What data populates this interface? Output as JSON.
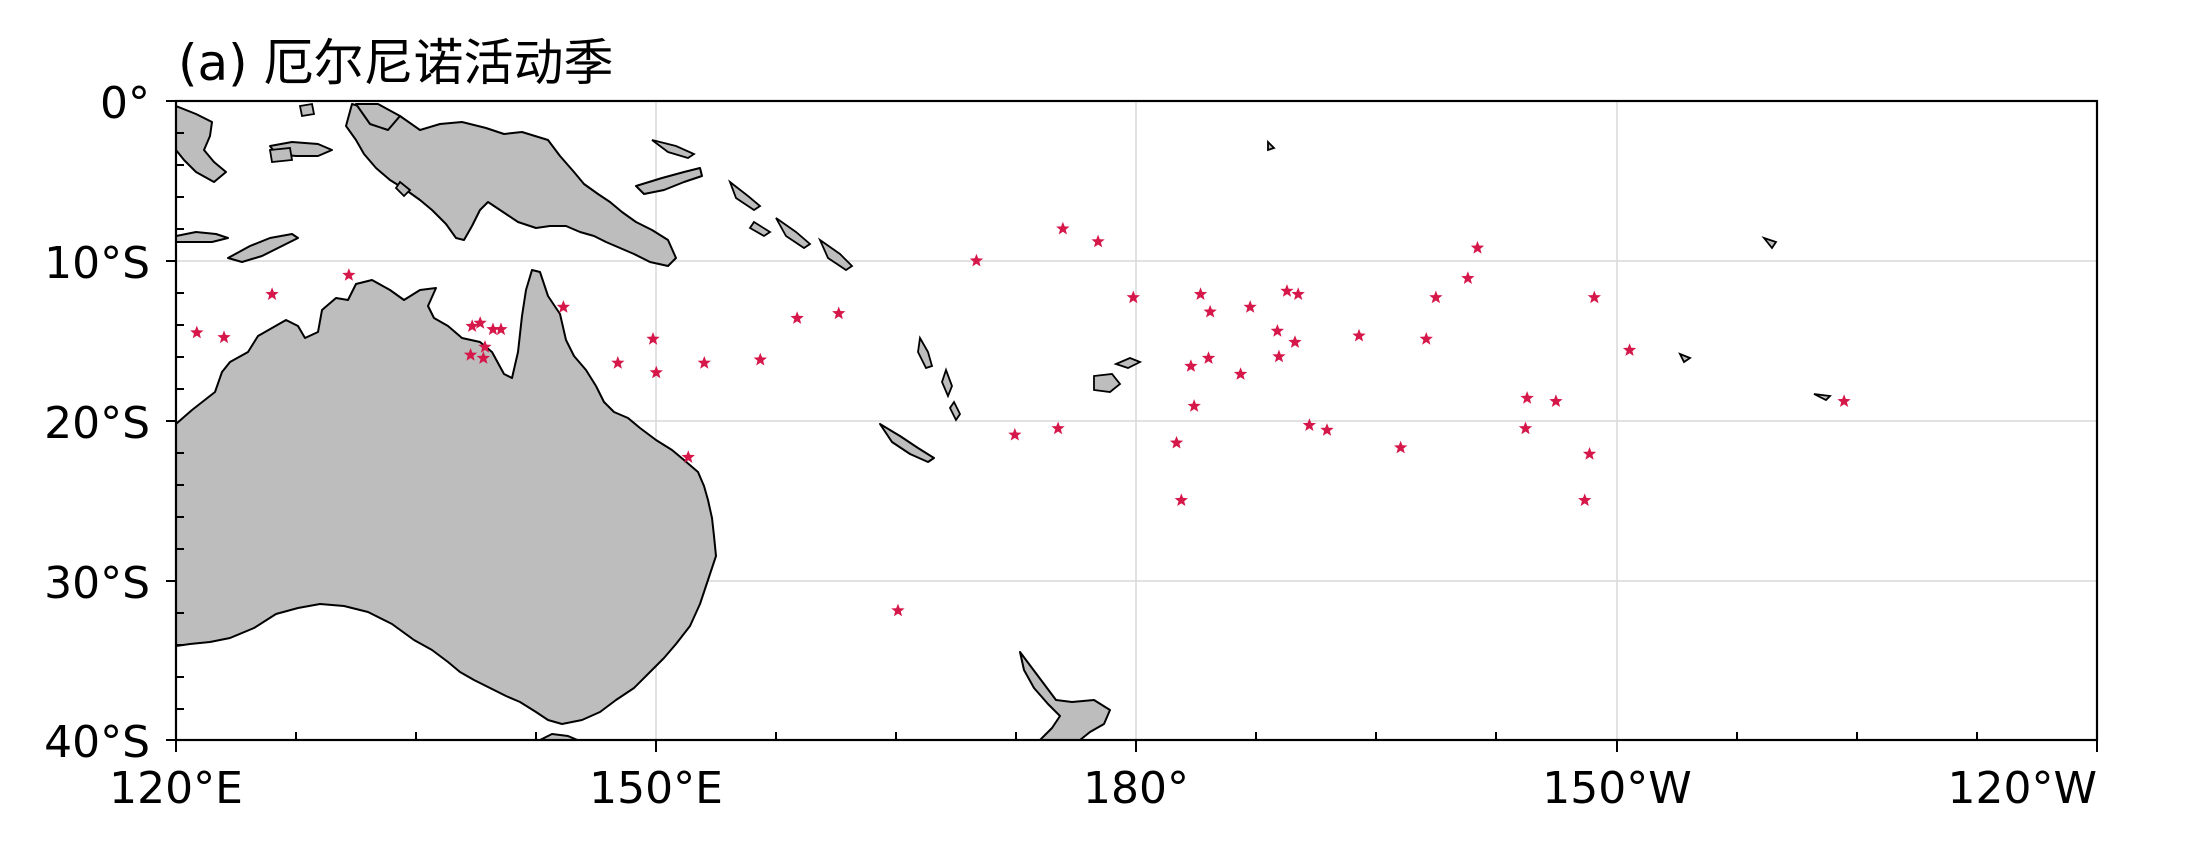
{
  "title": "(a) 厄尔尼诺活动季",
  "map": {
    "lon_range": [
      120,
      240
    ],
    "lat_range": [
      0,
      -40
    ],
    "x_ticks": [
      {
        "lon": 120,
        "label": "120°E"
      },
      {
        "lon": 150,
        "label": "150°E"
      },
      {
        "lon": 180,
        "label": "180°"
      },
      {
        "lon": 210,
        "label": "150°W"
      },
      {
        "lon": 240,
        "label": "120°W"
      }
    ],
    "y_ticks": [
      {
        "lat": 0,
        "label": "0°"
      },
      {
        "lat": -10,
        "label": "10°S"
      },
      {
        "lat": -20,
        "label": "20°S"
      },
      {
        "lat": -30,
        "label": "30°S"
      },
      {
        "lat": -40,
        "label": "40°S"
      }
    ],
    "land_color": "#bdbdbd",
    "marker_color": "#d6174a",
    "gridlines": true
  },
  "points": [
    [
      121.3,
      -14.5
    ],
    [
      123,
      -14.8
    ],
    [
      126,
      -12.1
    ],
    [
      130.8,
      -10.9
    ],
    [
      138.5,
      -14.1
    ],
    [
      139,
      -13.9
    ],
    [
      139.8,
      -14.3
    ],
    [
      140.3,
      -14.3
    ],
    [
      138.4,
      -15.9
    ],
    [
      139.2,
      -16.1
    ],
    [
      139.3,
      -15.4
    ],
    [
      144.2,
      -12.9
    ],
    [
      147.6,
      -16.4
    ],
    [
      149.8,
      -14.9
    ],
    [
      150,
      -17
    ],
    [
      153,
      -16.4
    ],
    [
      152,
      -22.3
    ],
    [
      156.5,
      -16.2
    ],
    [
      158.8,
      -13.6
    ],
    [
      161.4,
      -13.3
    ],
    [
      165.1,
      -31.9
    ],
    [
      170,
      -10
    ],
    [
      172.4,
      -20.9
    ],
    [
      175.1,
      -20.5
    ],
    [
      175.4,
      -8
    ],
    [
      177.6,
      -8.8
    ],
    [
      179.8,
      -12.3
    ],
    [
      182.5,
      -21.4
    ],
    [
      182.8,
      -25
    ],
    [
      183.4,
      -16.6
    ],
    [
      183.6,
      -19.1
    ],
    [
      184,
      -12.1
    ],
    [
      184.5,
      -16.1
    ],
    [
      184.6,
      -13.2
    ],
    [
      186.5,
      -17.1
    ],
    [
      187.1,
      -12.9
    ],
    [
      188.8,
      -14.4
    ],
    [
      188.9,
      -16
    ],
    [
      189.4,
      -11.9
    ],
    [
      189.9,
      -15.1
    ],
    [
      190.1,
      -12.1
    ],
    [
      190.8,
      -20.3
    ],
    [
      191.9,
      -20.6
    ],
    [
      193.9,
      -14.7
    ],
    [
      196.5,
      -21.7
    ],
    [
      198.1,
      -14.9
    ],
    [
      198.7,
      -12.3
    ],
    [
      200.7,
      -11.1
    ],
    [
      201.3,
      -9.2
    ],
    [
      204.3,
      -20.5
    ],
    [
      204.4,
      -18.6
    ],
    [
      206.2,
      -18.8
    ],
    [
      208,
      -25
    ],
    [
      208.3,
      -22.1
    ],
    [
      208.6,
      -12.3
    ],
    [
      210.8,
      -15.6
    ],
    [
      224.2,
      -18.8
    ]
  ]
}
